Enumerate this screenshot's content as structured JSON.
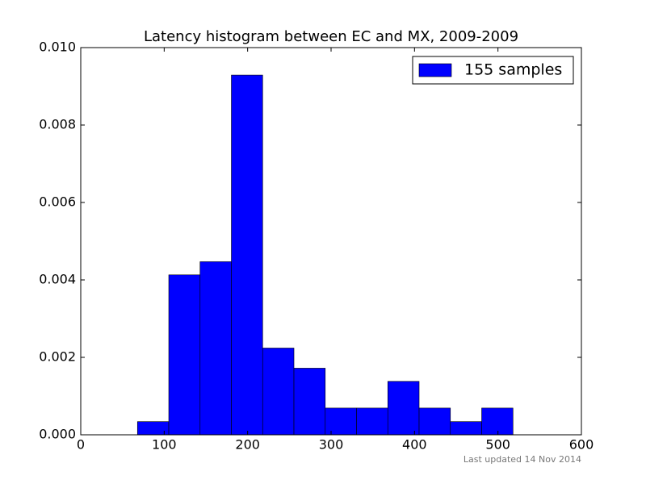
{
  "chart_data": {
    "type": "histogram",
    "title": "Latency histogram between EC and MX, 2009-2009",
    "bins": [
      68,
      105.5,
      143,
      180.5,
      218,
      255.5,
      293,
      330.5,
      368,
      405.5,
      443,
      480.5,
      518
    ],
    "values": [
      0.00034,
      0.00413,
      0.00447,
      0.00929,
      0.00224,
      0.00172,
      0.00069,
      0.00069,
      0.00138,
      0.00069,
      0.00034,
      0.00069
    ],
    "series_name": "155 samples",
    "color": "#0000ff",
    "xlim": [
      0,
      600
    ],
    "xticks": [
      0,
      100,
      200,
      300,
      400,
      500,
      600
    ],
    "ylim": [
      0,
      0.01
    ],
    "yticks": [
      {
        "value": 0,
        "label": "0.000"
      },
      {
        "value": 0.002,
        "label": "0.002"
      },
      {
        "value": 0.004,
        "label": "0.004"
      },
      {
        "value": 0.006,
        "label": "0.006"
      },
      {
        "value": 0.008,
        "label": "0.008"
      },
      {
        "value": 0.01,
        "label": "0.010"
      }
    ],
    "legend": "upper right",
    "footer": "Last updated 14 Nov 2014"
  }
}
